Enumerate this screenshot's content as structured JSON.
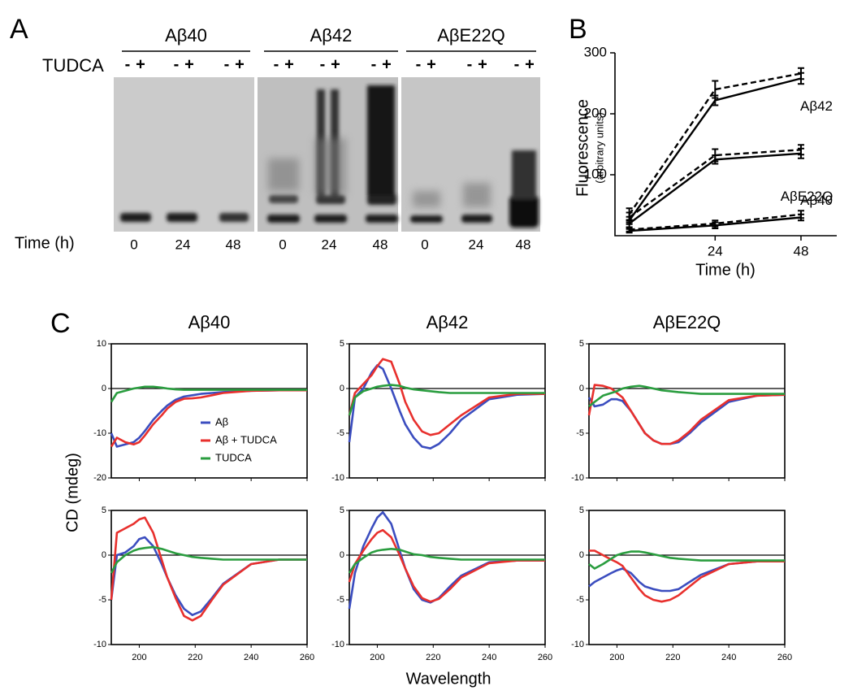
{
  "gel": {
    "label": "A",
    "treatment": "TUDCA",
    "signs": [
      "-",
      "+"
    ],
    "time_label": "Time (h)",
    "groups": [
      {
        "name": "Aβ40",
        "times": [
          "0",
          "24",
          "48"
        ]
      },
      {
        "name": "Aβ42",
        "times": [
          "0",
          "24",
          "48"
        ]
      },
      {
        "name": "AβE22Q",
        "times": [
          "0",
          "24",
          "48"
        ]
      }
    ]
  },
  "panel_b": {
    "label": "B"
  },
  "panel_c": {
    "label": "C",
    "ylabel": "CD (mdeg)",
    "xlabel": "Wavelength"
  },
  "chart_data": [
    {
      "type": "line",
      "ylabel": "Fluorescence",
      "ylabel_note": "(arbitrary units)",
      "xlabel": "Time (h)",
      "x": [
        0,
        24,
        48
      ],
      "xlim": [
        -4,
        58
      ],
      "ylim": [
        0,
        300
      ],
      "xticks": [
        24,
        48
      ],
      "yticks": [
        100,
        200,
        300
      ],
      "series": [
        {
          "name": "Aβ42",
          "color": "#000000",
          "dash": false,
          "values": [
            25,
            222,
            258
          ],
          "errors": [
            6,
            8,
            9
          ]
        },
        {
          "color": "#000000",
          "dash": true,
          "values": [
            35,
            240,
            266
          ],
          "errors": [
            10,
            14,
            9
          ]
        },
        {
          "name": "AβE22Q",
          "color": "#000000",
          "dash": false,
          "values": [
            20,
            125,
            135
          ],
          "errors": [
            6,
            7,
            8
          ]
        },
        {
          "color": "#000000",
          "dash": true,
          "values": [
            30,
            132,
            141
          ],
          "errors": [
            8,
            10,
            8
          ]
        },
        {
          "name": "Aβ40",
          "color": "#000000",
          "dash": false,
          "values": [
            8,
            17,
            30
          ],
          "errors": [
            3,
            5,
            5
          ]
        },
        {
          "color": "#000000",
          "dash": true,
          "values": [
            10,
            20,
            35
          ],
          "errors": [
            3,
            5,
            6
          ]
        }
      ]
    },
    {
      "type": "cd",
      "title": "Aβ40",
      "legend": true,
      "xtick_labels": false,
      "zero_line": true,
      "x": [
        190,
        192,
        195,
        198,
        200,
        202,
        205,
        208,
        210,
        213,
        216,
        219,
        222,
        226,
        230,
        240,
        250,
        260
      ],
      "xlim": [
        190,
        260
      ],
      "ylim": [
        -20,
        10
      ],
      "xticks": [
        200,
        220,
        240,
        260
      ],
      "yticks": [
        -20,
        -10,
        0,
        10
      ],
      "series": [
        {
          "name": "Aβ",
          "color": "#3b4dbf",
          "values": [
            -10,
            -13,
            -12.5,
            -12,
            -11,
            -9.5,
            -7,
            -5,
            -3.8,
            -2.5,
            -1.8,
            -1.5,
            -1.2,
            -1,
            -0.8,
            -0.5,
            -0.4,
            -0.4
          ]
        },
        {
          "name": "Aβ + TUDCA",
          "color": "#e8302d",
          "values": [
            -13,
            -11,
            -12,
            -12.5,
            -12,
            -10.5,
            -8,
            -6,
            -4.5,
            -3,
            -2.3,
            -2.2,
            -2,
            -1.5,
            -1,
            -0.5,
            -0.4,
            -0.4
          ]
        },
        {
          "name": "TUDCA",
          "color": "#2a9d3f",
          "values": [
            -3,
            -1,
            -0.5,
            0,
            0.2,
            0.4,
            0.4,
            0.2,
            0,
            -0.2,
            -0.3,
            -0.3,
            -0.3,
            -0.3,
            -0.3,
            -0.3,
            -0.3,
            -0.3
          ]
        }
      ]
    },
    {
      "type": "cd",
      "title": "Aβ42",
      "xtick_labels": false,
      "zero_line": true,
      "x": [
        190,
        192,
        195,
        198,
        200,
        202,
        205,
        208,
        210,
        213,
        216,
        219,
        222,
        226,
        230,
        240,
        250,
        260
      ],
      "xlim": [
        190,
        260
      ],
      "ylim": [
        -10,
        5
      ],
      "xticks": [
        200,
        220,
        240,
        260
      ],
      "yticks": [
        -10,
        -5,
        0,
        5
      ],
      "series": [
        {
          "color": "#3b4dbf",
          "values": [
            -6,
            -1,
            0,
            1.8,
            2.6,
            2.2,
            0,
            -2.5,
            -4,
            -5.5,
            -6.5,
            -6.7,
            -6.2,
            -5,
            -3.5,
            -1.2,
            -0.7,
            -0.6
          ]
        },
        {
          "color": "#e8302d",
          "values": [
            -3,
            -0.5,
            0.5,
            1.5,
            2.5,
            3.3,
            3,
            0.5,
            -1.5,
            -3.5,
            -4.8,
            -5.2,
            -5,
            -4,
            -3,
            -1,
            -0.6,
            -0.6
          ]
        },
        {
          "color": "#2a9d3f",
          "values": [
            -3,
            -1,
            -0.3,
            0,
            0.2,
            0.3,
            0.4,
            0.3,
            0.1,
            -0.1,
            -0.2,
            -0.3,
            -0.4,
            -0.5,
            -0.5,
            -0.5,
            -0.5,
            -0.5
          ]
        }
      ]
    },
    {
      "type": "cd",
      "title": "AβE22Q",
      "xtick_labels": false,
      "zero_line": true,
      "x": [
        190,
        192,
        195,
        198,
        200,
        202,
        205,
        208,
        210,
        213,
        216,
        219,
        222,
        226,
        230,
        240,
        250,
        260
      ],
      "xlim": [
        190,
        260
      ],
      "ylim": [
        -10,
        5
      ],
      "xticks": [
        200,
        220,
        240,
        260
      ],
      "yticks": [
        -10,
        -5,
        0,
        5
      ],
      "series": [
        {
          "color": "#3b4dbf",
          "values": [
            -1,
            -2,
            -1.8,
            -1.2,
            -1.2,
            -1.4,
            -2.5,
            -4,
            -5,
            -5.8,
            -6.2,
            -6.2,
            -6,
            -5,
            -3.8,
            -1.5,
            -0.8,
            -0.7
          ]
        },
        {
          "color": "#e8302d",
          "values": [
            -3,
            0.4,
            0.3,
            0,
            -0.5,
            -1,
            -2.5,
            -4,
            -5,
            -5.8,
            -6.2,
            -6.2,
            -5.8,
            -4.8,
            -3.5,
            -1.3,
            -0.8,
            -0.7
          ]
        },
        {
          "color": "#2a9d3f",
          "values": [
            -2,
            -1.5,
            -0.8,
            -0.5,
            -0.3,
            0,
            0.2,
            0.3,
            0.2,
            0,
            -0.2,
            -0.3,
            -0.4,
            -0.5,
            -0.6,
            -0.6,
            -0.6,
            -0.6
          ]
        }
      ]
    },
    {
      "type": "cd",
      "xtick_labels": true,
      "zero_line": true,
      "x": [
        190,
        192,
        195,
        198,
        200,
        202,
        205,
        208,
        210,
        213,
        216,
        219,
        222,
        226,
        230,
        240,
        250,
        260
      ],
      "xlim": [
        190,
        260
      ],
      "ylim": [
        -10,
        5
      ],
      "xticks": [
        200,
        220,
        240,
        260
      ],
      "yticks": [
        -10,
        -5,
        0,
        5
      ],
      "series": [
        {
          "color": "#3b4dbf",
          "values": [
            -5,
            0,
            0.3,
            1,
            1.8,
            2,
            1,
            -1,
            -2.5,
            -4.5,
            -6,
            -6.7,
            -6.3,
            -4.8,
            -3.2,
            -1,
            -0.5,
            -0.5
          ]
        },
        {
          "color": "#e8302d",
          "values": [
            -5,
            2.5,
            3,
            3.5,
            4,
            4.2,
            2.5,
            -0.5,
            -2.5,
            -4.8,
            -6.8,
            -7.3,
            -6.8,
            -5,
            -3.3,
            -1,
            -0.5,
            -0.5
          ]
        },
        {
          "color": "#2a9d3f",
          "values": [
            -2,
            -0.8,
            0,
            0.5,
            0.7,
            0.8,
            0.9,
            0.7,
            0.5,
            0.2,
            0,
            -0.2,
            -0.3,
            -0.4,
            -0.5,
            -0.5,
            -0.5,
            -0.5
          ]
        }
      ]
    },
    {
      "type": "cd",
      "xtick_labels": true,
      "zero_line": true,
      "x": [
        190,
        192,
        195,
        198,
        200,
        202,
        205,
        208,
        210,
        213,
        216,
        219,
        222,
        226,
        230,
        240,
        250,
        260
      ],
      "xlim": [
        190,
        260
      ],
      "ylim": [
        -10,
        5
      ],
      "xticks": [
        200,
        220,
        240,
        260
      ],
      "yticks": [
        -10,
        -5,
        0,
        5
      ],
      "series": [
        {
          "color": "#3b4dbf",
          "values": [
            -6,
            -2,
            1,
            3,
            4.2,
            4.8,
            3.5,
            0.5,
            -1.5,
            -3.8,
            -5,
            -5.3,
            -4.8,
            -3.5,
            -2.3,
            -0.8,
            -0.6,
            -0.6
          ]
        },
        {
          "color": "#e8302d",
          "values": [
            -3,
            -1,
            0.5,
            1.8,
            2.5,
            2.8,
            2,
            0,
            -1.5,
            -3.5,
            -4.8,
            -5.2,
            -4.9,
            -3.8,
            -2.5,
            -0.9,
            -0.6,
            -0.6
          ]
        },
        {
          "color": "#2a9d3f",
          "values": [
            -2,
            -1,
            -0.3,
            0.3,
            0.5,
            0.6,
            0.7,
            0.6,
            0.4,
            0.1,
            0,
            -0.2,
            -0.3,
            -0.4,
            -0.5,
            -0.5,
            -0.5,
            -0.5
          ]
        }
      ]
    },
    {
      "type": "cd",
      "xtick_labels": true,
      "zero_line": true,
      "x": [
        190,
        192,
        195,
        198,
        200,
        202,
        205,
        208,
        210,
        213,
        216,
        219,
        222,
        226,
        230,
        240,
        250,
        260
      ],
      "xlim": [
        190,
        260
      ],
      "ylim": [
        -10,
        5
      ],
      "xticks": [
        200,
        220,
        240,
        260
      ],
      "yticks": [
        -10,
        -5,
        0,
        5
      ],
      "series": [
        {
          "color": "#3b4dbf",
          "values": [
            -3.5,
            -3,
            -2.5,
            -2,
            -1.7,
            -1.5,
            -2,
            -3,
            -3.5,
            -3.8,
            -4,
            -4,
            -3.8,
            -3,
            -2.2,
            -1,
            -0.7,
            -0.7
          ]
        },
        {
          "color": "#e8302d",
          "values": [
            0.5,
            0.5,
            0,
            -0.5,
            -0.8,
            -1.2,
            -2.5,
            -3.8,
            -4.5,
            -5,
            -5.2,
            -5,
            -4.5,
            -3.5,
            -2.5,
            -1,
            -0.7,
            -0.7
          ]
        },
        {
          "color": "#2a9d3f",
          "values": [
            -1,
            -1.5,
            -1,
            -0.4,
            0,
            0.2,
            0.4,
            0.4,
            0.3,
            0.1,
            -0.1,
            -0.3,
            -0.4,
            -0.5,
            -0.6,
            -0.6,
            -0.6,
            -0.6
          ]
        }
      ]
    }
  ]
}
